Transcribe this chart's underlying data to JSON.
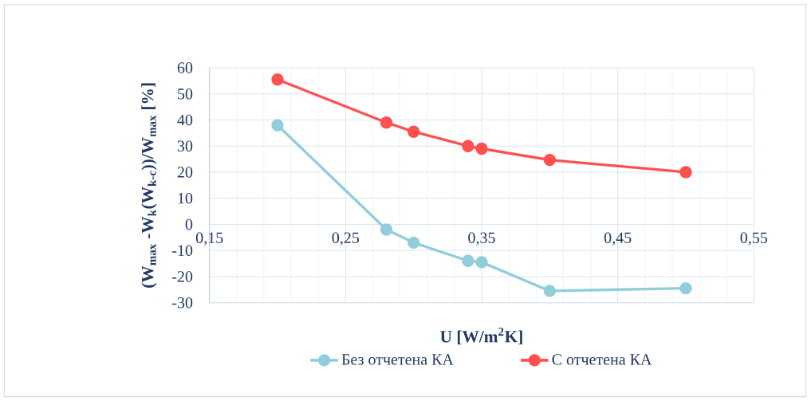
{
  "chart_data": {
    "type": "line",
    "xlabel": "U [W/m$^{2}$K]",
    "ylabel": "(W$_{max}$ -W$_{k}$(W$_{k-c}$))/W$_{max}$  [%]",
    "x": [
      0.2,
      0.28,
      0.3,
      0.34,
      0.35,
      0.4,
      0.5
    ],
    "series": [
      {
        "name": "Без отчетена КА",
        "color": "#92cddc",
        "values": [
          38,
          -2,
          -7,
          -14,
          -14.5,
          -25.5,
          -24.5
        ]
      },
      {
        "name": "С отчетена КА",
        "color": "#ff5050",
        "values": [
          55.5,
          39,
          35.5,
          30,
          29,
          24.7,
          20
        ]
      }
    ],
    "xlim": [
      0.15,
      0.55
    ],
    "xticks": [
      {
        "value": 0.15,
        "label": "0,15"
      },
      {
        "value": 0.25,
        "label": "0,25"
      },
      {
        "value": 0.35,
        "label": "0,35"
      },
      {
        "value": 0.45,
        "label": "0,45"
      },
      {
        "value": 0.55,
        "label": "0,55"
      }
    ],
    "ylim": [
      -30,
      60
    ],
    "yticks": [
      -30,
      -20,
      -10,
      0,
      10,
      20,
      30,
      40,
      50,
      60
    ],
    "grid": true,
    "legend": "bottom",
    "marker": "circle",
    "line_style": "solid"
  }
}
